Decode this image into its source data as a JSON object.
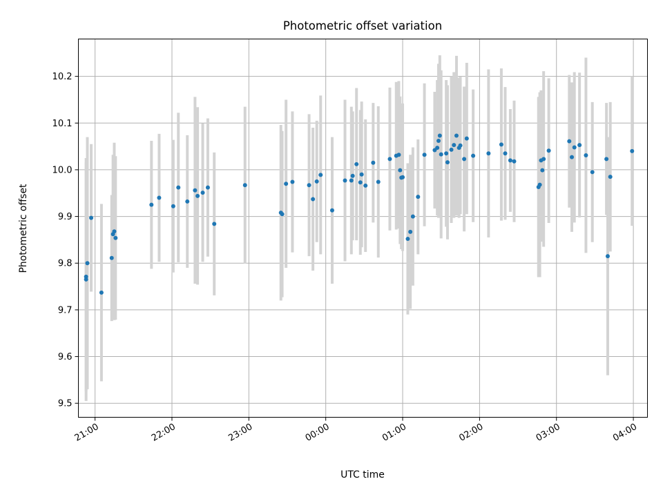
{
  "chart_data": {
    "type": "scatter",
    "title": "Photometric offset variation",
    "xlabel": "UTC time",
    "ylabel": "Photometric offset",
    "grid": true,
    "ylim": [
      9.47,
      10.28
    ],
    "yticks": [
      9.5,
      9.6,
      9.7,
      9.8,
      9.9,
      10.0,
      10.1,
      10.2
    ],
    "ytick_labels": [
      "9.5",
      "9.6",
      "9.7",
      "9.8",
      "9.9",
      "10.0",
      "10.1",
      "10.2"
    ],
    "xlim": [
      "20:47",
      "04:11"
    ],
    "xticks": [
      "21:00",
      "22:00",
      "23:00",
      "00:00",
      "01:00",
      "02:00",
      "03:00",
      "04:00"
    ],
    "colors": {
      "point": "#1f77b4",
      "errorbar": "#d3d3d3"
    },
    "series": [
      {
        "x": [
          "20:53",
          "20:53",
          "20:54",
          "20:57",
          "21:05",
          "21:13",
          "21:14",
          "21:15",
          "21:16",
          "21:44",
          "21:50",
          "22:01",
          "22:05",
          "22:12",
          "22:18",
          "22:20",
          "22:24",
          "22:28",
          "22:33",
          "22:57",
          "23:25",
          "23:26",
          "23:29",
          "23:34",
          "23:47",
          "23:50",
          "23:53",
          "23:56",
          "24:05",
          "24:15",
          "24:20",
          "24:21",
          "24:24",
          "24:27",
          "24:28",
          "24:31",
          "24:37",
          "24:41",
          "24:50",
          "24:55",
          "24:57",
          "24:58",
          "24:59",
          "25:00",
          "25:04",
          "25:06",
          "25:08",
          "25:12",
          "25:17",
          "25:25",
          "25:27",
          "25:28",
          "25:29",
          "25:30",
          "25:34",
          "25:35",
          "25:38",
          "25:40",
          "25:42",
          "25:44",
          "25:45",
          "25:48",
          "25:50",
          "25:55",
          "26:07",
          "26:17",
          "26:20",
          "26:24",
          "26:27",
          "26:46",
          "26:47",
          "26:48",
          "26:49",
          "26:50",
          "26:54",
          "27:10",
          "27:12",
          "27:14",
          "27:18",
          "27:23",
          "27:28",
          "27:39",
          "27:40",
          "27:42",
          "27:59"
        ],
        "y": [
          9.771,
          9.765,
          9.8,
          9.897,
          9.737,
          9.811,
          9.862,
          9.868,
          9.854,
          9.925,
          9.94,
          9.922,
          9.962,
          9.932,
          9.956,
          9.944,
          9.951,
          9.962,
          9.884,
          9.967,
          9.908,
          9.905,
          9.97,
          9.974,
          9.967,
          9.937,
          9.975,
          9.989,
          9.913,
          9.977,
          9.977,
          9.987,
          10.012,
          9.973,
          9.99,
          9.966,
          10.015,
          9.974,
          10.023,
          10.03,
          10.032,
          9.999,
          9.983,
          9.984,
          9.852,
          9.867,
          9.9,
          9.942,
          10.032,
          10.042,
          10.047,
          10.062,
          10.073,
          10.033,
          10.035,
          10.016,
          10.043,
          10.053,
          10.073,
          10.047,
          10.052,
          10.023,
          10.067,
          10.03,
          10.035,
          10.054,
          10.035,
          10.02,
          10.018,
          9.963,
          9.968,
          10.02,
          9.999,
          10.023,
          10.041,
          10.061,
          10.027,
          10.048,
          10.053,
          10.031,
          9.995,
          10.023,
          9.815,
          9.985,
          10.04
        ],
        "err": [
          0.245,
          0.26,
          0.27,
          0.158,
          0.19,
          0.135,
          0.17,
          0.19,
          0.175,
          0.137,
          0.137,
          0.142,
          0.16,
          0.142,
          0.2,
          0.19,
          0.148,
          0.148,
          0.153,
          0.168,
          0.188,
          0.178,
          0.18,
          0.151,
          0.152,
          0.153,
          0.13,
          0.17,
          0.157,
          0.173,
          0.158,
          0.138,
          0.163,
          0.155,
          0.156,
          0.142,
          0.128,
          0.162,
          0.153,
          0.158,
          0.158,
          0.158,
          0.153,
          0.158,
          0.162,
          0.165,
          0.148,
          0.123,
          0.153,
          0.125,
          0.145,
          0.165,
          0.172,
          0.18,
          0.157,
          0.165,
          0.157,
          0.156,
          0.171,
          0.15,
          0.147,
          0.155,
          0.162,
          0.142,
          0.18,
          0.163,
          0.142,
          0.11,
          0.13,
          0.193,
          0.198,
          0.15,
          0.153,
          0.188,
          0.155,
          0.142,
          0.16,
          0.161,
          0.155,
          0.209,
          0.15,
          0.12,
          0.255,
          0.16,
          0.16
        ]
      }
    ]
  }
}
